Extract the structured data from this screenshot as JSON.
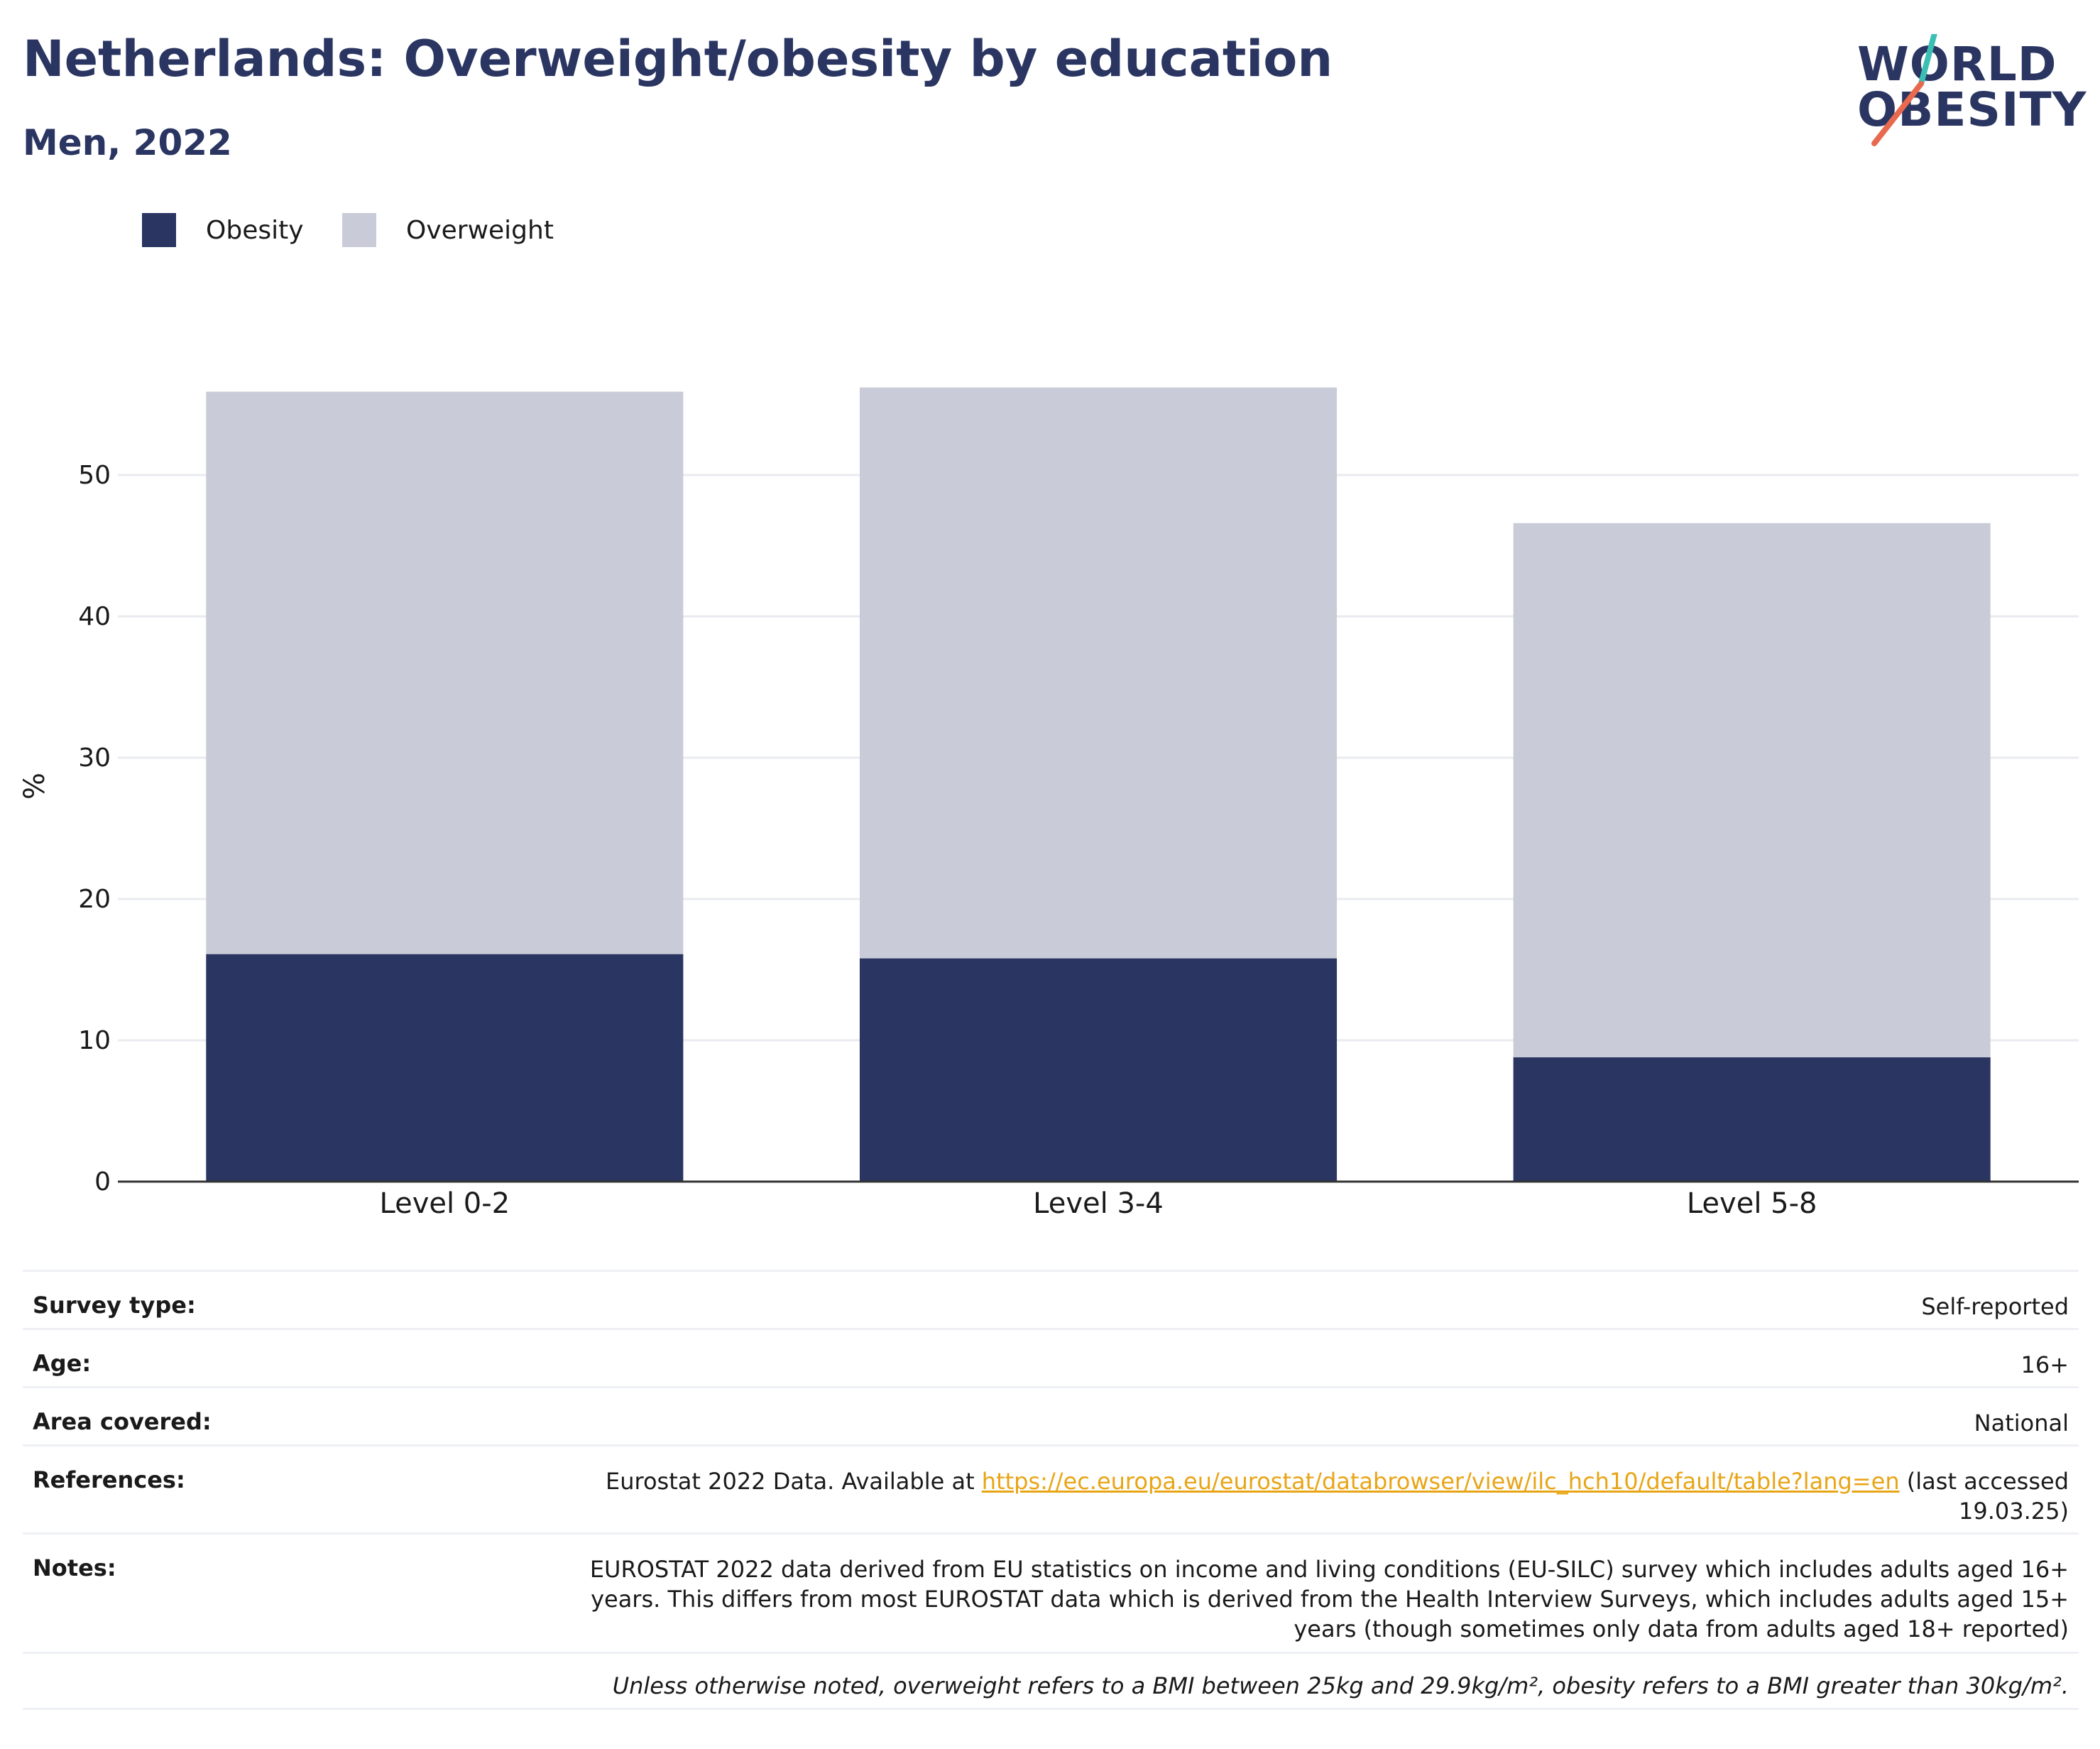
{
  "header": {
    "title": "Netherlands: Overweight/obesity by education",
    "subtitle": "Men, 2022"
  },
  "logo": {
    "line1": "WORLD",
    "line2": "OBESITY",
    "slash_colors": [
      "#3bbfb4",
      "#e8694e"
    ]
  },
  "legend": [
    {
      "label": "Obesity",
      "color": "#2a3562"
    },
    {
      "label": "Overweight",
      "color": "#c9ccd8"
    }
  ],
  "chart_data": {
    "type": "bar",
    "stacked": true,
    "categories": [
      "Level 0-2",
      "Level 3-4",
      "Level 5-8"
    ],
    "series": [
      {
        "name": "Obesity",
        "color": "#2a3562",
        "values": [
          16.1,
          15.8,
          8.8
        ]
      },
      {
        "name": "Overweight",
        "color": "#c9ccd8",
        "values": [
          39.8,
          40.4,
          37.8
        ]
      }
    ],
    "ylabel": "%",
    "ylim": [
      0,
      60
    ],
    "yticks": [
      0,
      10,
      20,
      30,
      40,
      50
    ],
    "grid": true,
    "legend_position": "top-left"
  },
  "meta": {
    "rows": [
      {
        "key": "Survey type:",
        "value": "Self-reported"
      },
      {
        "key": "Age:",
        "value": "16+"
      },
      {
        "key": "Area covered:",
        "value": "National"
      },
      {
        "key": "References:",
        "value_prefix": "Eurostat 2022 Data. Available at ",
        "link": "https://ec.europa.eu/eurostat/databrowser/view/ilc_hch10/default/table?lang=en",
        "value_suffix": " (last accessed 19.03.25)"
      },
      {
        "key": "Notes:",
        "value": "EUROSTAT 2022 data derived from EU statistics on income and living conditions (EU-SILC) survey which includes adults aged 16+ years. This differs from most EUROSTAT data which is derived from the Health Interview Surveys, which includes adults aged 15+ years (though sometimes only data from adults aged 18+ reported)"
      }
    ],
    "footnote": "Unless otherwise noted, overweight refers to a BMI between 25kg and 29.9kg/m², obesity refers to a BMI greater than 30kg/m²."
  }
}
